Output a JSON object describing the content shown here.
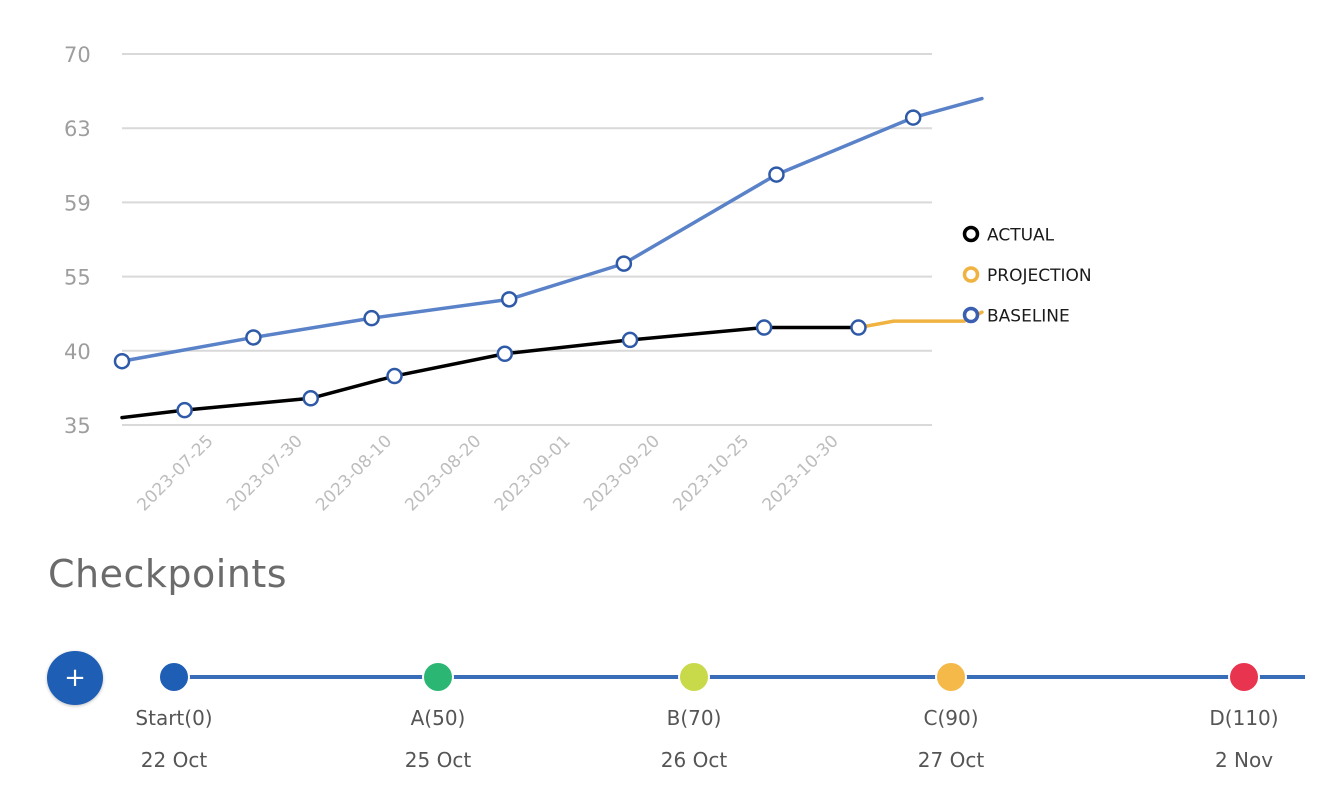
{
  "chart_data": {
    "type": "line",
    "yticks": [
      "70",
      "63",
      "59",
      "55",
      "40",
      "35"
    ],
    "x": [
      "2023-07-25",
      "2023-07-30",
      "2023-08-10",
      "2023-08-20",
      "2023-09-01",
      "2023-09-20",
      "2023-10-25",
      "2023-10-30"
    ],
    "series": [
      {
        "name": "ACTUAL",
        "color": "#000000",
        "points": [
          [
            0.0,
            35.5
          ],
          [
            0.71,
            36.0
          ],
          [
            2.14,
            36.8
          ],
          [
            3.09,
            38.3
          ],
          [
            4.34,
            39.8
          ],
          [
            5.76,
            42.2
          ],
          [
            7.28,
            44.7
          ],
          [
            8.35,
            44.7
          ]
        ]
      },
      {
        "name": "PROJECTION",
        "color": "#f0b240",
        "points": [
          [
            8.35,
            44.7
          ],
          [
            8.75,
            46.0
          ],
          [
            9.55,
            46.0
          ],
          [
            9.75,
            47.8
          ]
        ]
      },
      {
        "name": "BASELINE",
        "color": "#5a82c8",
        "points": [
          [
            0.0,
            39.3
          ],
          [
            1.49,
            42.7
          ],
          [
            2.83,
            46.6
          ],
          [
            4.39,
            50.4
          ],
          [
            5.69,
            55.7
          ],
          [
            7.42,
            60.5
          ],
          [
            8.97,
            64.0
          ],
          [
            9.75,
            65.8
          ]
        ],
        "markers": 7
      }
    ],
    "legend": {
      "position": "right",
      "items": [
        {
          "label": "ACTUAL",
          "color": "#000000"
        },
        {
          "label": "PROJECTION",
          "color": "#f0b240"
        },
        {
          "label": "BASELINE",
          "color": "#3a5fb0"
        }
      ]
    },
    "grid": true
  },
  "checkpoints": {
    "title": "Checkpoints",
    "add_button_label": "+",
    "items": [
      {
        "label": "Start(0)",
        "date": "22 Oct",
        "color": "#1e5eb5"
      },
      {
        "label": "A(50)",
        "date": "25 Oct",
        "color": "#2bb673"
      },
      {
        "label": "B(70)",
        "date": "26 Oct",
        "color": "#c8d94a"
      },
      {
        "label": "C(90)",
        "date": "27 Oct",
        "color": "#f5b94a"
      },
      {
        "label": "D(110)",
        "date": "2 Nov",
        "color": "#e8344e"
      }
    ]
  }
}
